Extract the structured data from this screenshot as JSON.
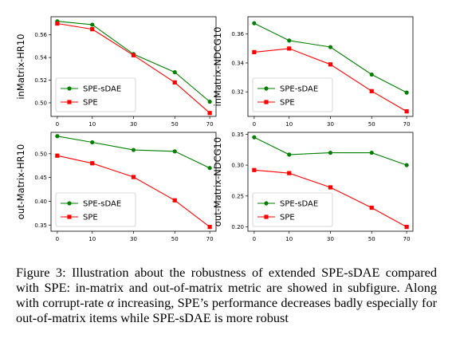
{
  "chart_data": [
    {
      "type": "line",
      "ylabel": "inMatrix-HR10",
      "x": [
        0,
        10,
        30,
        50,
        70
      ],
      "ylim": [
        0.488,
        0.576
      ],
      "yticks": [
        "0.56",
        "0.54",
        "0.52",
        "0.50"
      ],
      "ytick_values": [
        0.56,
        0.54,
        0.52,
        0.5
      ],
      "legend": "bottom-left",
      "series": [
        {
          "name": "SPE-sDAE",
          "color": "#008000",
          "marker": "circle",
          "values": [
            0.572,
            0.569,
            0.543,
            0.527,
            0.501
          ]
        },
        {
          "name": "SPE",
          "color": "#ff0000",
          "marker": "square",
          "values": [
            0.57,
            0.565,
            0.542,
            0.518,
            0.491
          ]
        }
      ]
    },
    {
      "type": "line",
      "ylabel": "inMatrix-NDCG10",
      "x": [
        0,
        10,
        30,
        50,
        70
      ],
      "ylim": [
        0.303,
        0.372
      ],
      "yticks": [
        "0.36",
        "0.34",
        "0.32"
      ],
      "ytick_values": [
        0.36,
        0.34,
        0.32
      ],
      "legend": "bottom-left",
      "series": [
        {
          "name": "SPE-sDAE",
          "color": "#008000",
          "marker": "circle",
          "values": [
            0.3675,
            0.3555,
            0.351,
            0.332,
            0.3195
          ]
        },
        {
          "name": "SPE",
          "color": "#ff0000",
          "marker": "square",
          "values": [
            0.3475,
            0.35,
            0.339,
            0.3205,
            0.3065
          ]
        }
      ]
    },
    {
      "type": "line",
      "ylabel": "out-Matrix-HR10",
      "x": [
        0,
        10,
        30,
        50,
        70
      ],
      "ylim": [
        0.337,
        0.545
      ],
      "yticks": [
        "0.50",
        "0.45",
        "0.40",
        "0.35"
      ],
      "ytick_values": [
        0.5,
        0.45,
        0.4,
        0.35
      ],
      "legend": "bottom-left",
      "series": [
        {
          "name": "SPE-sDAE",
          "color": "#008000",
          "marker": "circle",
          "values": [
            0.537,
            0.524,
            0.508,
            0.505,
            0.47
          ]
        },
        {
          "name": "SPE",
          "color": "#ff0000",
          "marker": "square",
          "values": [
            0.496,
            0.48,
            0.451,
            0.402,
            0.346
          ]
        }
      ]
    },
    {
      "type": "line",
      "ylabel": "out-Matrix-NDCG10",
      "x": [
        0,
        10,
        30,
        50,
        70
      ],
      "ylim": [
        0.193,
        0.353
      ],
      "yticks": [
        "0.35",
        "0.30",
        "0.25",
        "0.20"
      ],
      "ytick_values": [
        0.35,
        0.3,
        0.25,
        0.2
      ],
      "legend": "bottom-left",
      "series": [
        {
          "name": "SPE-sDAE",
          "color": "#008000",
          "marker": "circle",
          "values": [
            0.345,
            0.317,
            0.32,
            0.32,
            0.3
          ]
        },
        {
          "name": "SPE",
          "color": "#ff0000",
          "marker": "square",
          "values": [
            0.292,
            0.287,
            0.264,
            0.231,
            0.2
          ]
        }
      ]
    }
  ],
  "xtick_labels": [
    "0",
    "10",
    "30",
    "50",
    "70"
  ],
  "caption": {
    "before_alpha": "Figure 3: Illustration about the robustness of extended SPE-sDAE compared with SPE: in-matrix and out-of-matrix metric are showed in subfigure. Along with corrupt-rate ",
    "alpha": "α",
    "after_alpha": " increasing, SPE’s performance decreases badly especially for out-of-matrix items while SPE-sDAE is more robust"
  }
}
